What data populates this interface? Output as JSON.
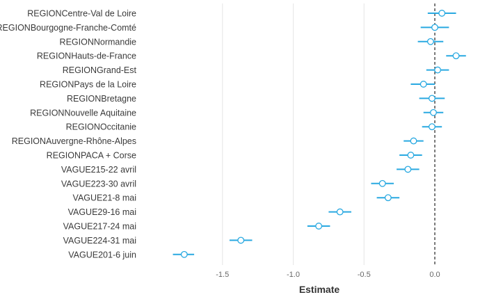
{
  "chart_data": {
    "type": "scatter",
    "subtype": "coefficient-plot",
    "title": "",
    "xlabel": "Estimate",
    "ylabel": "",
    "xlim": [
      -1.8,
      0.25
    ],
    "xticks": [
      -1.5,
      -1.0,
      -0.5,
      0.0
    ],
    "xtick_labels": [
      "-1.5",
      "-1.0",
      "-0.5",
      "0.0"
    ],
    "reference_line": 0.0,
    "grid": "vertical",
    "point_color": "#29a9e1",
    "terms": [
      {
        "label": "REGIONCentre-Val de Loire",
        "estimate": 0.05,
        "low": -0.05,
        "high": 0.15
      },
      {
        "label": "REGIONBourgogne-Franche-Comté",
        "estimate": 0.0,
        "low": -0.1,
        "high": 0.1
      },
      {
        "label": "REGIONNormandie",
        "estimate": -0.03,
        "low": -0.12,
        "high": 0.06
      },
      {
        "label": "REGIONHauts-de-France",
        "estimate": 0.15,
        "low": 0.08,
        "high": 0.22
      },
      {
        "label": "REGIONGrand-Est",
        "estimate": 0.02,
        "low": -0.06,
        "high": 0.1
      },
      {
        "label": "REGIONPays de la Loire",
        "estimate": -0.08,
        "low": -0.17,
        "high": 0.0
      },
      {
        "label": "REGIONBretagne",
        "estimate": -0.02,
        "low": -0.11,
        "high": 0.07
      },
      {
        "label": "REGIONNouvelle Aquitaine",
        "estimate": -0.01,
        "low": -0.08,
        "high": 0.06
      },
      {
        "label": "REGIONOccitanie",
        "estimate": -0.02,
        "low": -0.09,
        "high": 0.05
      },
      {
        "label": "REGIONAuvergne-Rhône-Alpes",
        "estimate": -0.15,
        "low": -0.22,
        "high": -0.08
      },
      {
        "label": "REGIONPACA + Corse",
        "estimate": -0.17,
        "low": -0.25,
        "high": -0.09
      },
      {
        "label": "VAGUE215-22 avril",
        "estimate": -0.19,
        "low": -0.27,
        "high": -0.11
      },
      {
        "label": "VAGUE223-30 avril",
        "estimate": -0.37,
        "low": -0.45,
        "high": -0.29
      },
      {
        "label": "VAGUE21-8 mai",
        "estimate": -0.33,
        "low": -0.41,
        "high": -0.25
      },
      {
        "label": "VAGUE29-16 mai",
        "estimate": -0.67,
        "low": -0.75,
        "high": -0.59
      },
      {
        "label": "VAGUE217-24 mai",
        "estimate": -0.82,
        "low": -0.9,
        "high": -0.74
      },
      {
        "label": "VAGUE224-31 mai",
        "estimate": -1.37,
        "low": -1.45,
        "high": -1.29
      },
      {
        "label": "VAGUE201-6 juin",
        "estimate": -1.77,
        "low": -1.85,
        "high": -1.7
      }
    ]
  }
}
